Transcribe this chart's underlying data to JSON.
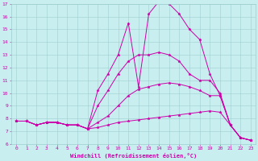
{
  "xlabel": "Windchill (Refroidissement éolien,°C)",
  "xlim": [
    -0.5,
    23.5
  ],
  "ylim": [
    6,
    17
  ],
  "yticks": [
    6,
    7,
    8,
    9,
    10,
    11,
    12,
    13,
    14,
    15,
    16,
    17
  ],
  "xticks": [
    0,
    1,
    2,
    3,
    4,
    5,
    6,
    7,
    8,
    9,
    10,
    11,
    12,
    13,
    14,
    15,
    16,
    17,
    18,
    19,
    20,
    21,
    22,
    23
  ],
  "background_color": "#c8eef0",
  "grid_color": "#9ecece",
  "line_color": "#cc00aa",
  "lines": [
    {
      "x": [
        0,
        1,
        2,
        3,
        4,
        5,
        6,
        7,
        8,
        9,
        10,
        11,
        12,
        13,
        14,
        15,
        16,
        17,
        18,
        19,
        20,
        21,
        22,
        23
      ],
      "y": [
        7.8,
        7.8,
        7.5,
        7.7,
        7.7,
        7.5,
        7.5,
        7.2,
        7.3,
        7.5,
        7.7,
        7.8,
        7.9,
        8.0,
        8.1,
        8.2,
        8.3,
        8.4,
        8.5,
        8.6,
        8.5,
        7.5,
        6.5,
        6.3
      ]
    },
    {
      "x": [
        0,
        1,
        2,
        3,
        4,
        5,
        6,
        7,
        8,
        9,
        10,
        11,
        12,
        13,
        14,
        15,
        16,
        17,
        18,
        19,
        20,
        21,
        22,
        23
      ],
      "y": [
        7.8,
        7.8,
        7.5,
        7.7,
        7.7,
        7.5,
        7.5,
        7.2,
        7.7,
        8.2,
        9.0,
        9.8,
        10.3,
        10.5,
        10.7,
        10.8,
        10.7,
        10.5,
        10.2,
        9.8,
        9.8,
        7.5,
        6.5,
        6.3
      ]
    },
    {
      "x": [
        0,
        1,
        2,
        3,
        4,
        5,
        6,
        7,
        8,
        9,
        10,
        11,
        12,
        13,
        14,
        15,
        16,
        17,
        18,
        19,
        20,
        21,
        22,
        23
      ],
      "y": [
        7.8,
        7.8,
        7.5,
        7.7,
        7.7,
        7.5,
        7.5,
        7.2,
        9.0,
        10.2,
        11.5,
        12.5,
        13.0,
        13.0,
        13.2,
        13.0,
        12.5,
        11.5,
        11.0,
        11.0,
        10.0,
        7.5,
        6.5,
        6.3
      ]
    },
    {
      "x": [
        0,
        1,
        2,
        3,
        4,
        5,
        6,
        7,
        8,
        9,
        10,
        11,
        12,
        13,
        14,
        15,
        16,
        17,
        18,
        19,
        20,
        21,
        22,
        23
      ],
      "y": [
        7.8,
        7.8,
        7.5,
        7.7,
        7.7,
        7.5,
        7.5,
        7.2,
        10.2,
        11.5,
        13.0,
        15.5,
        10.5,
        16.2,
        17.2,
        17.0,
        16.2,
        15.0,
        14.2,
        11.5,
        9.8,
        7.5,
        6.5,
        6.3
      ]
    }
  ]
}
